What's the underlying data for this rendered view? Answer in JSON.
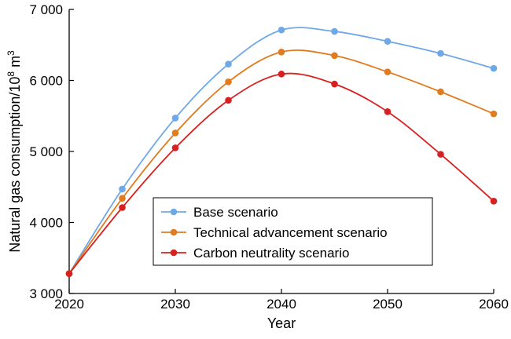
{
  "chart_data": {
    "type": "line",
    "title": "",
    "xlabel": "Year",
    "ylabel": "Natural gas consumption/10",
    "ylabel_sup": "8",
    "ylabel_unit": " m",
    "ylabel_unit_sup": "3",
    "x": [
      2020,
      2025,
      2030,
      2035,
      2040,
      2045,
      2050,
      2055,
      2060
    ],
    "x_ticks": [
      2020,
      2030,
      2040,
      2050,
      2060
    ],
    "x_tick_labels": [
      "2020",
      "2030",
      "2040",
      "2050",
      "2060"
    ],
    "xlim": [
      2020,
      2060
    ],
    "y_ticks": [
      3000,
      4000,
      5000,
      6000,
      7000
    ],
    "y_tick_labels": [
      "3 000",
      "4 000",
      "5 000",
      "6 000",
      "7 000"
    ],
    "ylim": [
      3000,
      7000
    ],
    "grid": false,
    "legend_position": "lower-center",
    "series": [
      {
        "name": "Base scenario",
        "color": "#6fa8e6",
        "values": [
          3280,
          4470,
          5470,
          6230,
          6710,
          6690,
          6550,
          6380,
          6170
        ]
      },
      {
        "name": "Technical advancement scenario",
        "color": "#e07b1f",
        "values": [
          3280,
          4340,
          5260,
          5980,
          6400,
          6350,
          6120,
          5840,
          5530
        ]
      },
      {
        "name": "Carbon neutrality scenario",
        "color": "#d92020",
        "values": [
          3280,
          4210,
          5050,
          5720,
          6090,
          5950,
          5560,
          4960,
          4300
        ]
      }
    ]
  }
}
